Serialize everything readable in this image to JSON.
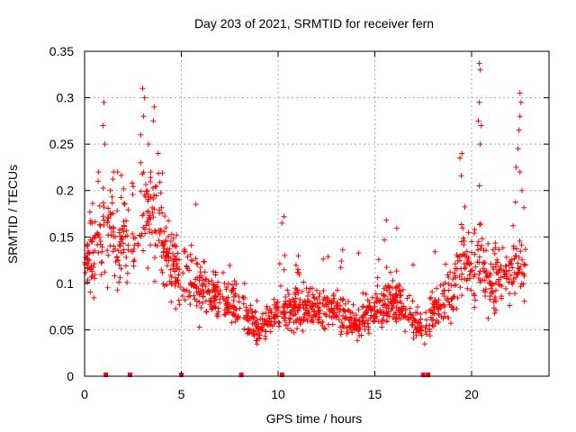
{
  "chart_data": {
    "type": "scatter",
    "title": "Day 203 of 2021, SRMTID for receiver fern",
    "xlabel": "GPS time / hours",
    "ylabel": "SRMTID / TECUs",
    "xlim": [
      0,
      24
    ],
    "ylim": [
      0,
      0.35
    ],
    "xticks": [
      0,
      5,
      10,
      15,
      20
    ],
    "xtick_labels": [
      "0",
      "5",
      "10",
      "15",
      "20"
    ],
    "yticks": [
      0,
      0.05,
      0.1,
      0.15,
      0.2,
      0.25,
      0.3,
      0.35
    ],
    "ytick_labels": [
      "0",
      "0.05",
      "0.1",
      "0.15",
      "0.2",
      "0.25",
      "0.3",
      "0.35"
    ],
    "grid": true,
    "marker": "+",
    "series_color": "#ff0000",
    "series": [
      {
        "name": "SRMTID",
        "profile_x": [
          0,
          0.3,
          0.8,
          1.3,
          1.8,
          2.3,
          2.8,
          3.3,
          3.8,
          4.3,
          5.0,
          6.0,
          7.0,
          8.0,
          9.0,
          10.0,
          11.0,
          12.0,
          13.0,
          14.0,
          15.0,
          16.0,
          17.0,
          17.5,
          18.0,
          19.0,
          19.5,
          20.0,
          20.5,
          21.0,
          22.0,
          22.8
        ],
        "profile_y": [
          0.12,
          0.13,
          0.15,
          0.16,
          0.14,
          0.15,
          0.16,
          0.18,
          0.17,
          0.13,
          0.11,
          0.095,
          0.085,
          0.075,
          0.05,
          0.07,
          0.075,
          0.07,
          0.07,
          0.055,
          0.07,
          0.08,
          0.06,
          0.045,
          0.07,
          0.09,
          0.13,
          0.11,
          0.12,
          0.1,
          0.11,
          0.12
        ],
        "spikes": [
          {
            "x": 1.0,
            "y": 0.295
          },
          {
            "x": 0.95,
            "y": 0.27
          },
          {
            "x": 1.05,
            "y": 0.25
          },
          {
            "x": 3.0,
            "y": 0.31
          },
          {
            "x": 3.1,
            "y": 0.3
          },
          {
            "x": 3.05,
            "y": 0.28
          },
          {
            "x": 2.9,
            "y": 0.26
          },
          {
            "x": 3.6,
            "y": 0.29
          },
          {
            "x": 3.55,
            "y": 0.275
          },
          {
            "x": 3.3,
            "y": 0.25
          },
          {
            "x": 3.8,
            "y": 0.24
          },
          {
            "x": 5.75,
            "y": 0.185
          },
          {
            "x": 10.3,
            "y": 0.172
          },
          {
            "x": 10.2,
            "y": 0.165
          },
          {
            "x": 15.6,
            "y": 0.168
          },
          {
            "x": 19.5,
            "y": 0.24
          },
          {
            "x": 19.4,
            "y": 0.235
          },
          {
            "x": 20.4,
            "y": 0.337
          },
          {
            "x": 20.45,
            "y": 0.33
          },
          {
            "x": 20.4,
            "y": 0.295
          },
          {
            "x": 20.35,
            "y": 0.275
          },
          {
            "x": 20.5,
            "y": 0.27
          },
          {
            "x": 20.45,
            "y": 0.25
          },
          {
            "x": 20.4,
            "y": 0.205
          },
          {
            "x": 22.5,
            "y": 0.305
          },
          {
            "x": 22.55,
            "y": 0.295
          },
          {
            "x": 22.5,
            "y": 0.28
          },
          {
            "x": 22.45,
            "y": 0.265
          },
          {
            "x": 22.4,
            "y": 0.245
          },
          {
            "x": 22.3,
            "y": 0.225
          },
          {
            "x": 22.5,
            "y": 0.22
          },
          {
            "x": 22.6,
            "y": 0.2
          },
          {
            "x": 1.5,
            "y": 0.22
          },
          {
            "x": 0.7,
            "y": 0.21
          },
          {
            "x": 2.9,
            "y": 0.23
          },
          {
            "x": 4.2,
            "y": 0.16
          }
        ]
      }
    ],
    "data_gaps": [
      1.1,
      2.35,
      5.0,
      8.1,
      10.2,
      17.5,
      17.75
    ]
  }
}
